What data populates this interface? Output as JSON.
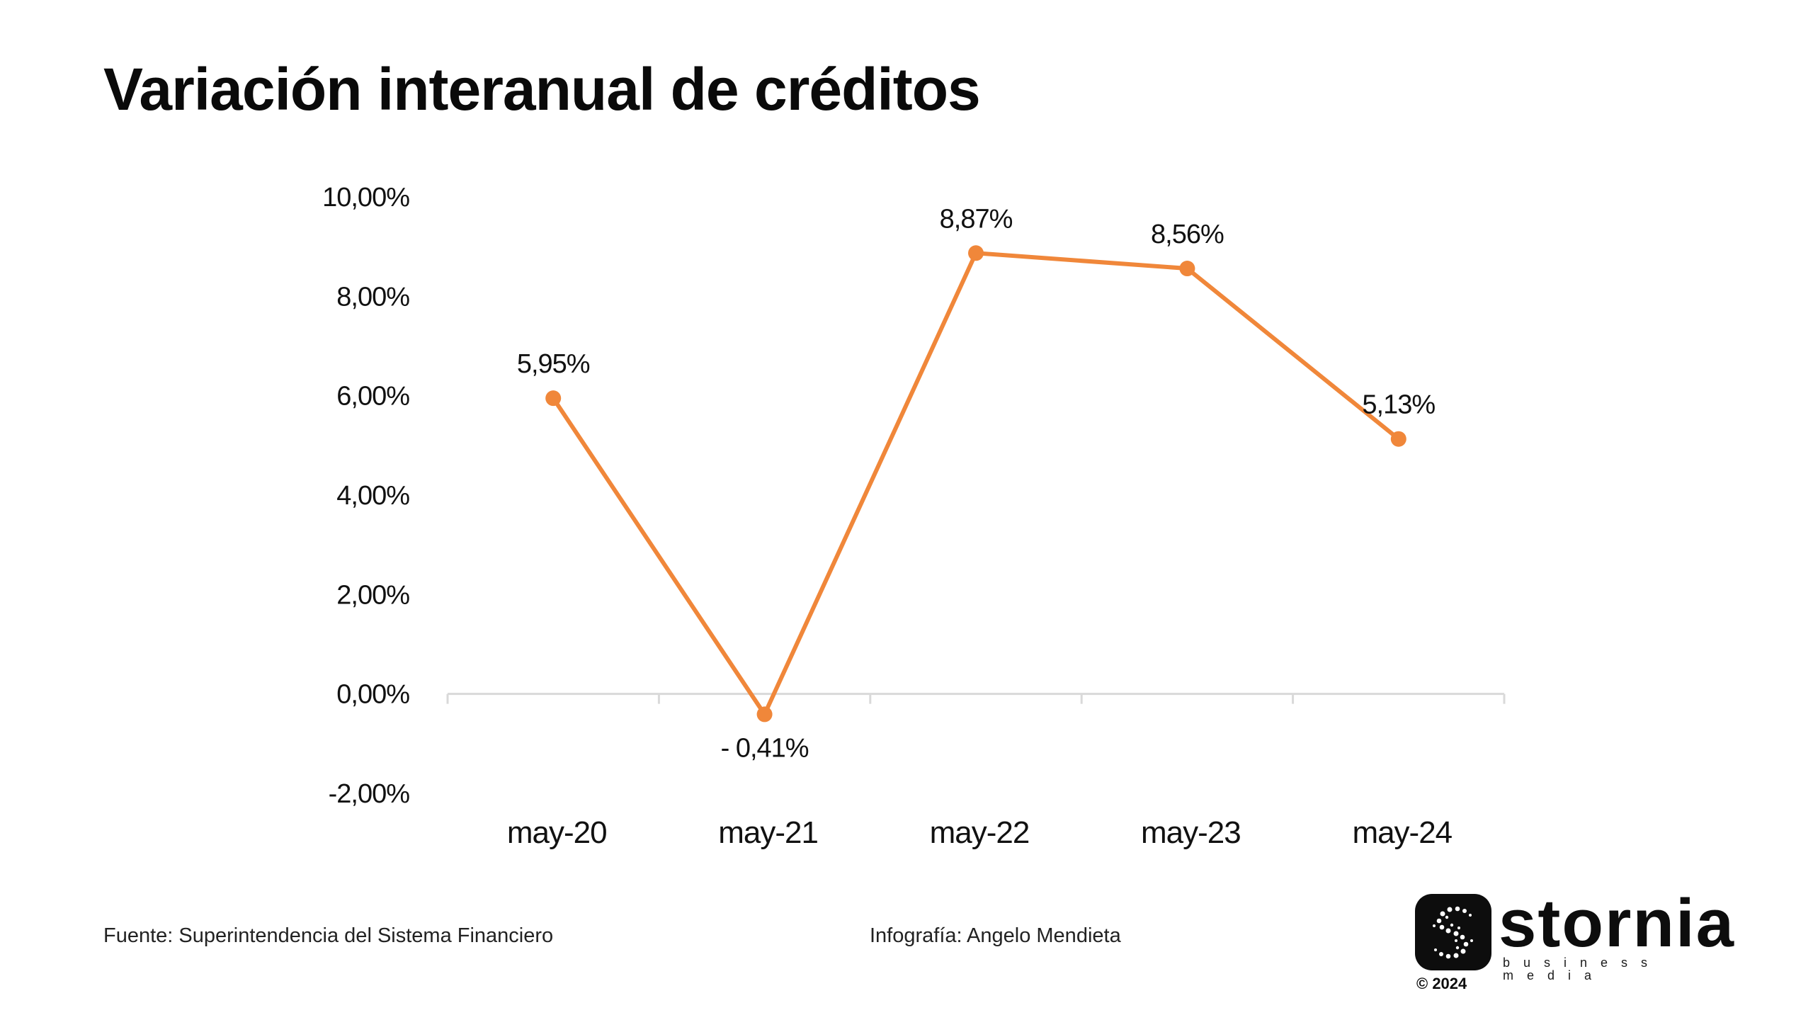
{
  "page": {
    "title": "Variación interanual de créditos",
    "source": "Fuente: Superintendencia del Sistema Financiero",
    "credit": "Infografía: Angelo Mendieta"
  },
  "logo": {
    "name": "stornia",
    "tagline": "business media",
    "year": "© 2024",
    "icon": "stornia-s-icon"
  },
  "colors": {
    "line": "#f0873a",
    "axis": "#d9d9d9",
    "text": "#111111"
  },
  "chart_data": {
    "type": "line",
    "title": "Variación interanual de créditos",
    "categories": [
      "may-20",
      "may-21",
      "may-22",
      "may-23",
      "may-24"
    ],
    "values": [
      5.95,
      -0.41,
      8.87,
      8.56,
      5.13
    ],
    "data_labels": [
      "5,95%",
      "- 0,41%",
      "8,87%",
      "8,56%",
      "5,13%"
    ],
    "ylim": [
      -2,
      10
    ],
    "yticks": [
      10,
      8,
      6,
      4,
      2,
      0,
      -2
    ],
    "ytick_labels": [
      "10,00%",
      "8,00%",
      "6,00%",
      "4,00%",
      "2,00%",
      "0,00%",
      "-2,00%"
    ],
    "xlabel": "",
    "ylabel": "",
    "grid": false,
    "legend": "none",
    "markers": true
  }
}
